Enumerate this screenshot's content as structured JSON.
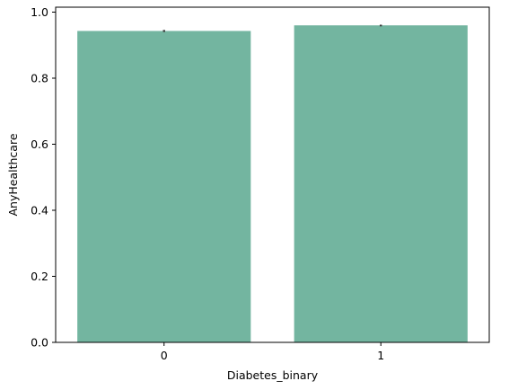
{
  "chart_data": {
    "type": "bar",
    "categories": [
      "0",
      "1"
    ],
    "values": [
      0.943,
      0.96
    ],
    "error_bars": [
      [
        0.94,
        0.946
      ],
      [
        0.957,
        0.962
      ]
    ],
    "xlabel": "Diabetes_binary",
    "ylabel": "AnyHealthcare",
    "ylim": [
      0,
      1.0
    ],
    "yticks": [
      0.0,
      0.2,
      0.4,
      0.6,
      0.8,
      1.0
    ],
    "ytick_labels": [
      "0.0",
      "0.2",
      "0.4",
      "0.6",
      "0.8",
      "1.0"
    ],
    "grid": false,
    "bar_color": "#73b5a0",
    "errorbar_color": "#3d3d3d"
  }
}
